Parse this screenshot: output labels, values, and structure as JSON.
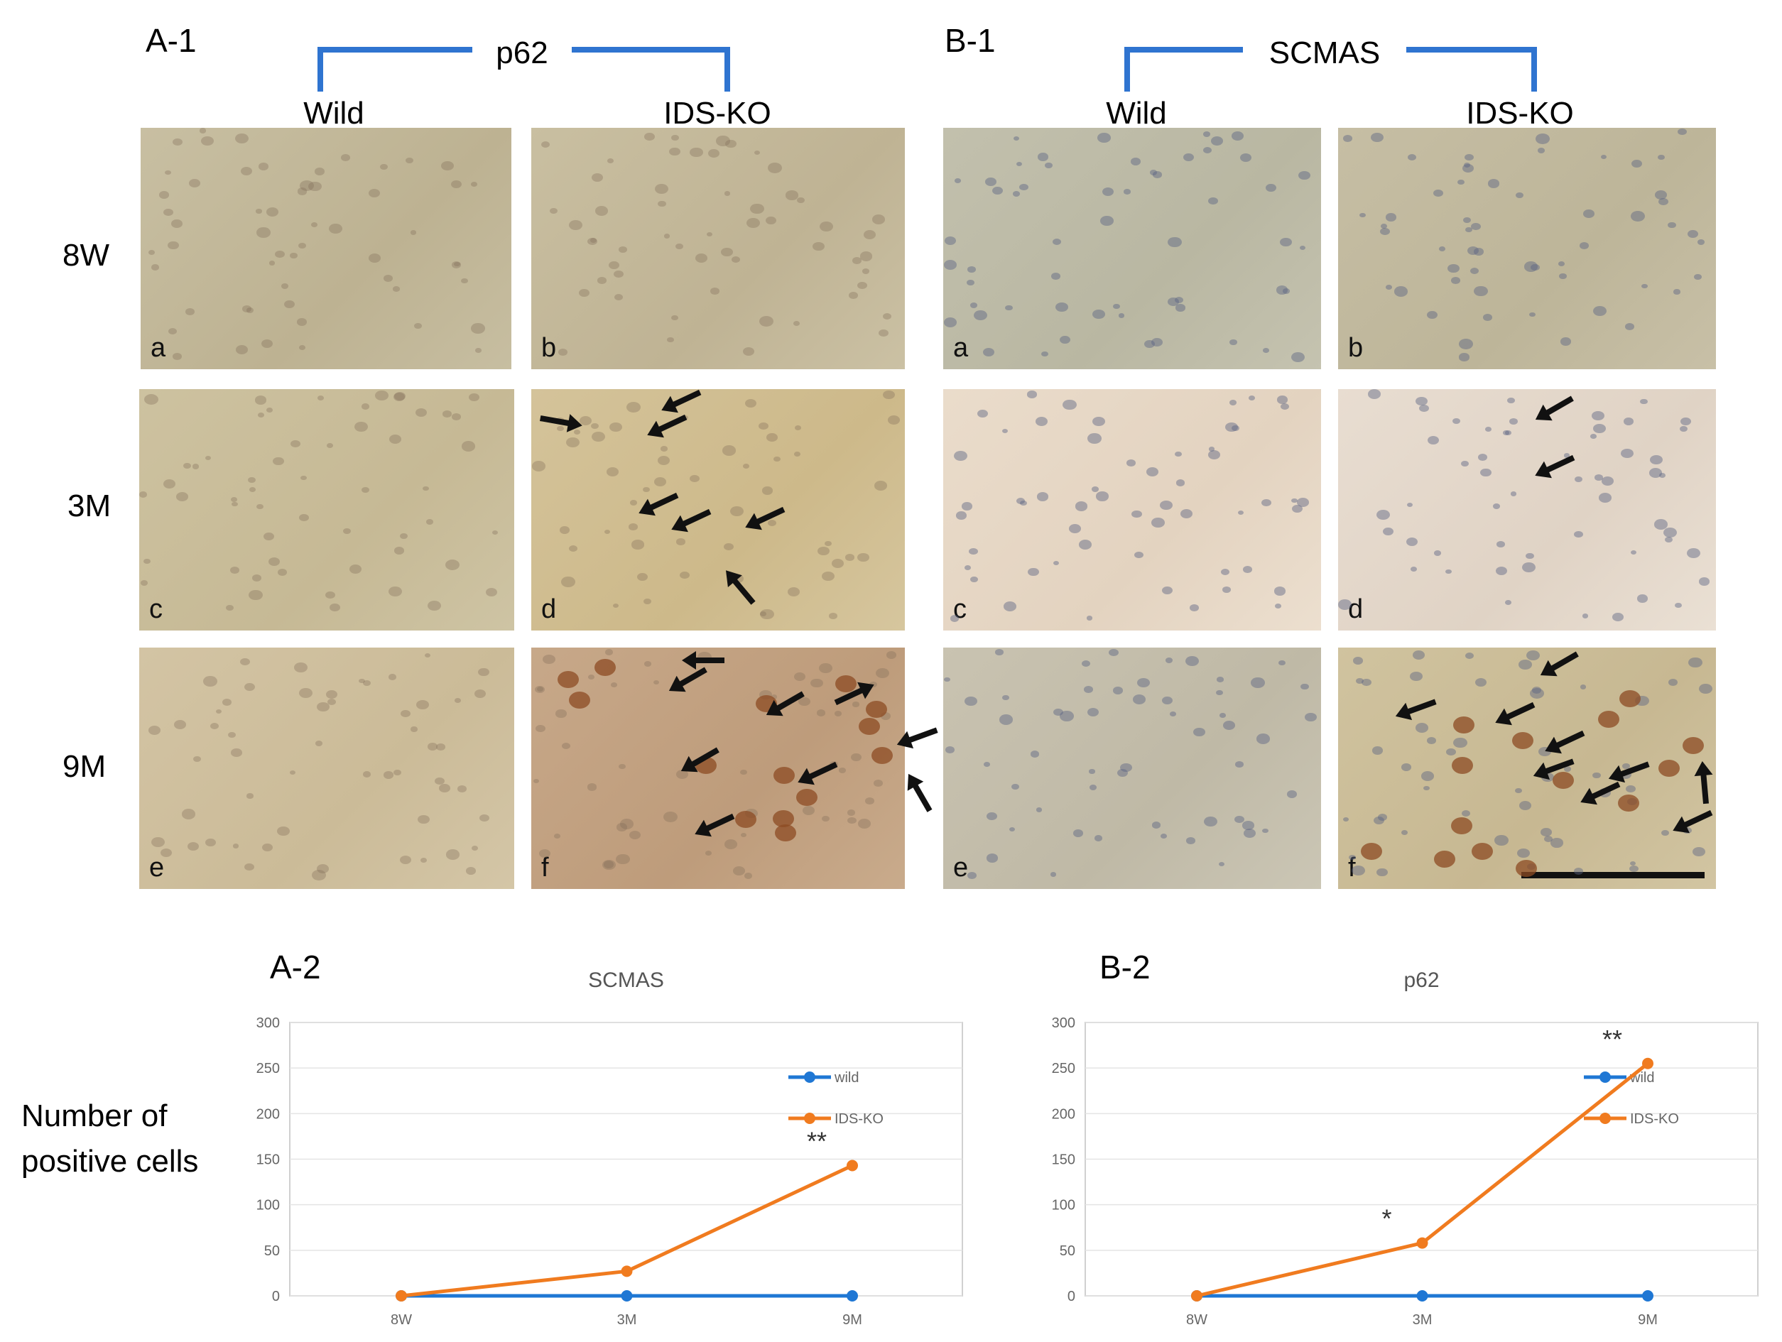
{
  "panels": {
    "a1_label": "A-1",
    "b1_label": "B-1",
    "a2_label": "A-2",
    "b2_label": "B-2"
  },
  "a1": {
    "stain": "p62",
    "col_wild": "Wild",
    "col_ko": "IDS-KO"
  },
  "b1": {
    "stain": "SCMAS",
    "col_wild": "Wild",
    "col_ko": "IDS-KO"
  },
  "rows": [
    "8W",
    "3M",
    "9M"
  ],
  "sub_letters": [
    "a",
    "b",
    "c",
    "d",
    "e",
    "f"
  ],
  "y_axis_label_line1": "Number of",
  "y_axis_label_line2": "positive cells",
  "colors": {
    "bracket": "#2f74d0",
    "wild": "#1f77d4",
    "ko": "#f07b1f"
  },
  "chart_data": [
    {
      "type": "line",
      "title": "SCMAS",
      "categories": [
        "8W",
        "3M",
        "9M"
      ],
      "ylim": [
        0,
        300
      ],
      "yticks": [
        0,
        50,
        100,
        150,
        200,
        250,
        300
      ],
      "series": [
        {
          "name": "wild",
          "values": [
            0,
            0,
            0
          ]
        },
        {
          "name": "IDS-KO",
          "values": [
            0,
            27,
            143
          ]
        }
      ],
      "annotations": [
        {
          "category": "9M",
          "text": "**"
        }
      ],
      "legend": "right"
    },
    {
      "type": "line",
      "title": "p62",
      "categories": [
        "8W",
        "3M",
        "9M"
      ],
      "ylim": [
        0,
        300
      ],
      "yticks": [
        0,
        50,
        100,
        150,
        200,
        250,
        300
      ],
      "series": [
        {
          "name": "wild",
          "values": [
            0,
            0,
            0
          ]
        },
        {
          "name": "IDS-KO",
          "values": [
            0,
            58,
            255
          ]
        }
      ],
      "annotations": [
        {
          "category": "3M",
          "text": "*"
        },
        {
          "category": "9M",
          "text": "**"
        }
      ],
      "legend": "right"
    }
  ]
}
